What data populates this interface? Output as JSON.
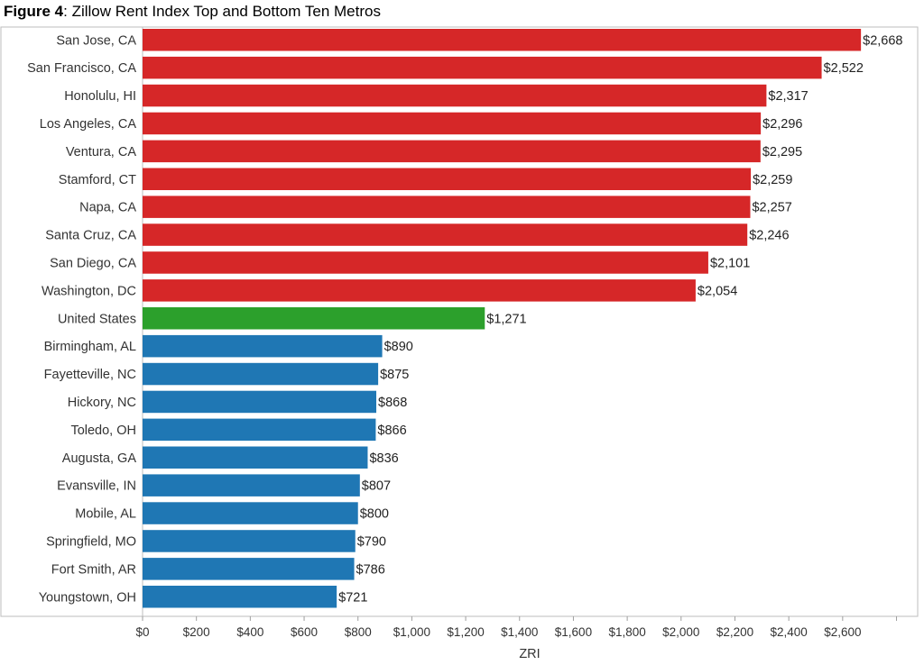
{
  "title": {
    "prefix": "Figure 4",
    "text": ": Zillow Rent Index Top and Bottom Ten Metros"
  },
  "chart_data": {
    "type": "bar",
    "orientation": "horizontal",
    "categories": [
      "San Jose, CA",
      "San Francisco, CA",
      "Honolulu, HI",
      "Los Angeles, CA",
      "Ventura, CA",
      "Stamford, CT",
      "Napa, CA",
      "Santa Cruz, CA",
      "San Diego, CA",
      "Washington, DC",
      "United States",
      "Birmingham, AL",
      "Fayetteville, NC",
      "Hickory, NC",
      "Toledo, OH",
      "Augusta, GA",
      "Evansville, IN",
      "Mobile, AL",
      "Springfield, MO",
      "Fort Smith, AR",
      "Youngstown, OH"
    ],
    "values": [
      2668,
      2522,
      2317,
      2296,
      2295,
      2259,
      2257,
      2246,
      2101,
      2054,
      1271,
      890,
      875,
      868,
      866,
      836,
      807,
      800,
      790,
      786,
      721
    ],
    "value_labels": [
      "$2,668",
      "$2,522",
      "$2,317",
      "$2,296",
      "$2,295",
      "$2,259",
      "$2,257",
      "$2,246",
      "$2,101",
      "$2,054",
      "$1,271",
      "$890",
      "$875",
      "$868",
      "$866",
      "$836",
      "$807",
      "$800",
      "$790",
      "$786",
      "$721"
    ],
    "groups": [
      "top",
      "top",
      "top",
      "top",
      "top",
      "top",
      "top",
      "top",
      "top",
      "top",
      "national",
      "bottom",
      "bottom",
      "bottom",
      "bottom",
      "bottom",
      "bottom",
      "bottom",
      "bottom",
      "bottom",
      "bottom"
    ],
    "colors": {
      "top": "#d62728",
      "national": "#2ca02c",
      "bottom": "#1f77b4"
    },
    "xticks": [
      0,
      200,
      400,
      600,
      800,
      1000,
      1200,
      1400,
      1600,
      1800,
      2000,
      2200,
      2400,
      2600
    ],
    "xtick_labels": [
      "$0",
      "$200",
      "$400",
      "$600",
      "$800",
      "$1,000",
      "$1,200",
      "$1,400",
      "$1,600",
      "$1,800",
      "$2,000",
      "$2,200",
      "$2,400",
      "$2,600"
    ],
    "xlim": [
      0,
      2800
    ],
    "xlabel": "ZRI",
    "ylabel": "",
    "grid": false
  }
}
